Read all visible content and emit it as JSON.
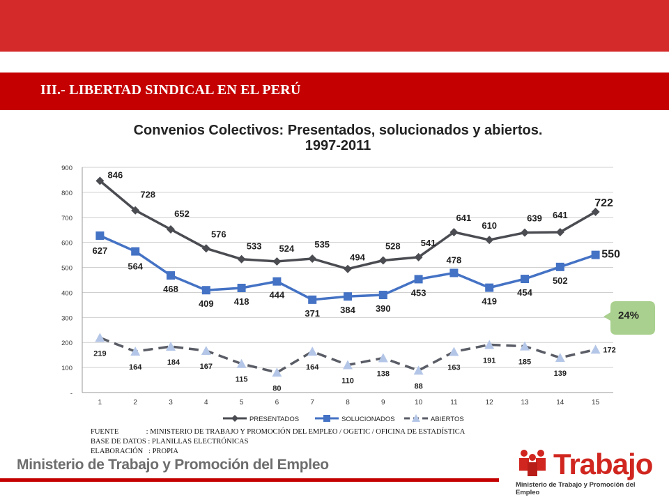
{
  "header": {
    "section_title": "III.- LIBERTAD SINDICAL EN EL PERÚ"
  },
  "chart_data": {
    "type": "line",
    "title": "Convenios Colectivos: Presentados, solucionados y abiertos.",
    "subtitle": "1997-2011",
    "categories": [
      "1",
      "2",
      "3",
      "4",
      "5",
      "6",
      "7",
      "8",
      "9",
      "10",
      "11",
      "12",
      "13",
      "14",
      "15"
    ],
    "ylim": [
      0,
      900
    ],
    "yticks": [
      "-",
      "100",
      "200",
      "300",
      "400",
      "500",
      "600",
      "700",
      "800",
      "900"
    ],
    "grid": true,
    "legend_position": "bottom",
    "series": [
      {
        "name": "PRESENTADOS",
        "color": "#4a4c52",
        "marker": "diamond",
        "dashed": false,
        "values": [
          846,
          728,
          652,
          576,
          533,
          524,
          535,
          494,
          528,
          541,
          641,
          610,
          639,
          641,
          722
        ],
        "labels": [
          "846",
          "728",
          "652",
          "576",
          "533",
          "524",
          "535",
          "494",
          "528",
          "541",
          "641",
          "610",
          "639",
          "641",
          "722"
        ]
      },
      {
        "name": "SOLUCIONADOS",
        "color": "#4472c4",
        "marker": "square",
        "dashed": false,
        "values": [
          627,
          564,
          468,
          409,
          418,
          444,
          371,
          384,
          390,
          453,
          478,
          419,
          454,
          502,
          550
        ],
        "labels": [
          "627",
          "564",
          "468",
          "409",
          "418",
          "444",
          "371",
          "384",
          "390",
          "453",
          "478",
          "419",
          "454",
          "502",
          "550"
        ]
      },
      {
        "name": "ABIERTOS",
        "color": "#5a5d66",
        "marker": "triangle",
        "markerColor": "#b4c6e7",
        "dashed": true,
        "values": [
          219,
          164,
          184,
          167,
          115,
          80,
          164,
          110,
          138,
          88,
          163,
          191,
          185,
          139,
          172
        ],
        "labels": [
          "219",
          "164",
          "184",
          "167",
          "115",
          "80",
          "164",
          "110",
          "138",
          "88",
          "163",
          "191",
          "185",
          "139",
          "172"
        ]
      }
    ],
    "annotation": "24%"
  },
  "footnotes": {
    "fuente_label": "FUENTE",
    "fuente_value": "MINISTERIO DE TRABAJO Y PROMOCIÓN DEL EMPLEO / OGETIC / OFICINA DE ESTADÍSTICA",
    "base_label": "BASE DE DATOS",
    "base_value": "PLANILLAS ELECTRÓNICAS",
    "elab_label": "ELABORACIÓN",
    "elab_value": "PROPIA"
  },
  "footer": {
    "ministry": "Ministerio de Trabajo y Promoción del Empleo",
    "logo_word": "Trabajo",
    "logo_sub": "Ministerio de Trabajo y Promoción del Empleo"
  },
  "colors": {
    "brand_red": "#c40000",
    "top_band": "#d42a2a",
    "bubble": "#a9d08e"
  }
}
